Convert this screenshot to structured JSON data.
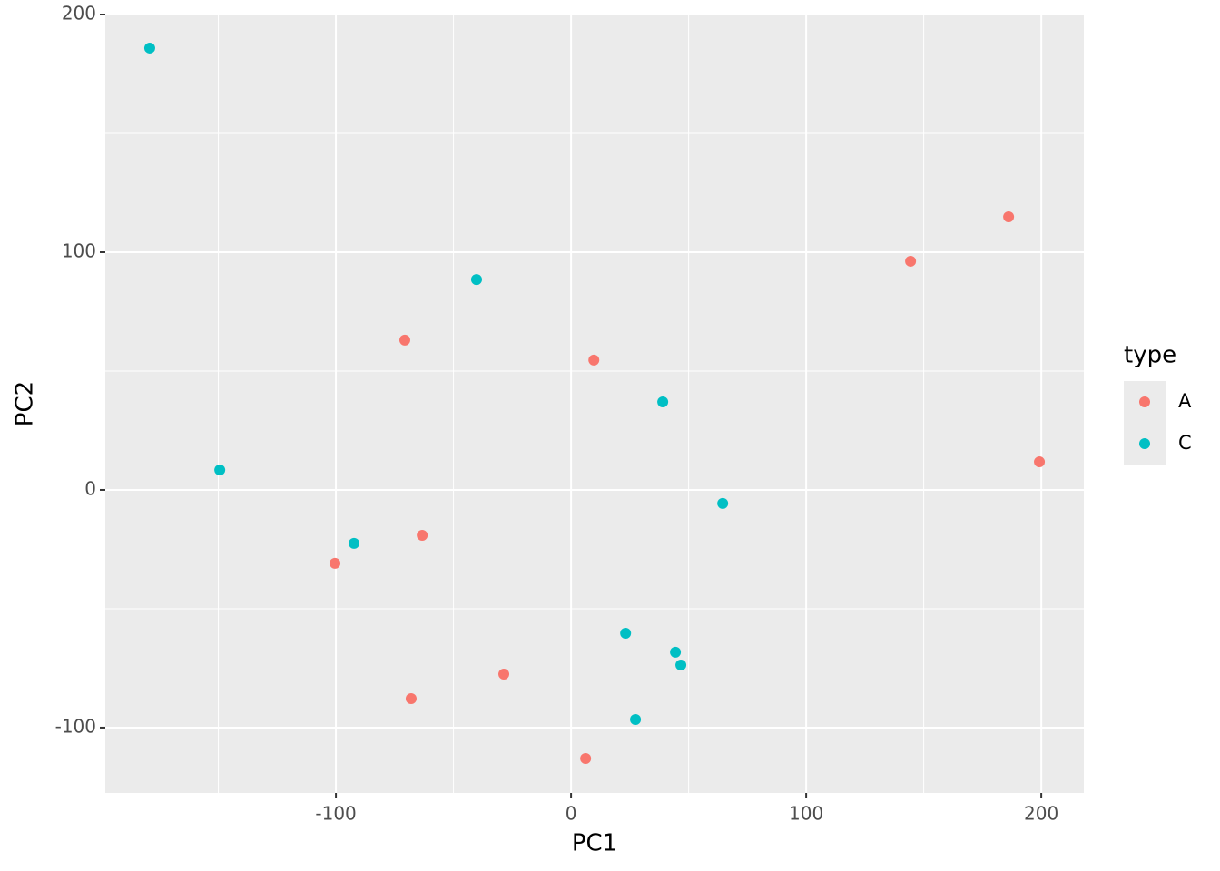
{
  "chart_data": {
    "type": "scatter",
    "x_label": "PC1",
    "y_label": "PC2",
    "xlim": [
      -198.1,
      218.1
    ],
    "ylim": [
      -127.5,
      200
    ],
    "xticks": [
      -100,
      0,
      100,
      200
    ],
    "yticks": [
      -100,
      0,
      100,
      200
    ],
    "xminor": [
      -150,
      -50,
      50,
      150
    ],
    "yminor": [
      -50,
      50,
      150
    ],
    "grid": true,
    "legend_title": "type",
    "legend_position": "right",
    "series": [
      {
        "name": "A",
        "color": "#F8766D",
        "x": [
          186.1,
          144.4,
          -70.7,
          9.7,
          199.2,
          -63.3,
          -100.4,
          -28.6,
          -68.0,
          6.2
        ],
        "values": [
          114.9,
          96.2,
          63.0,
          54.6,
          11.8,
          -19.1,
          -30.9,
          -77.5,
          -87.8,
          -113.0
        ]
      },
      {
        "name": "C",
        "color": "#00BFC4",
        "x": [
          -179.2,
          -40.2,
          39.0,
          -149.4,
          64.5,
          -92.3,
          23.2,
          44.4,
          46.7,
          27.4
        ],
        "values": [
          185.9,
          88.5,
          37.0,
          8.4,
          -5.7,
          -22.5,
          -60.3,
          -68.3,
          -73.7,
          -96.6
        ]
      }
    ]
  }
}
